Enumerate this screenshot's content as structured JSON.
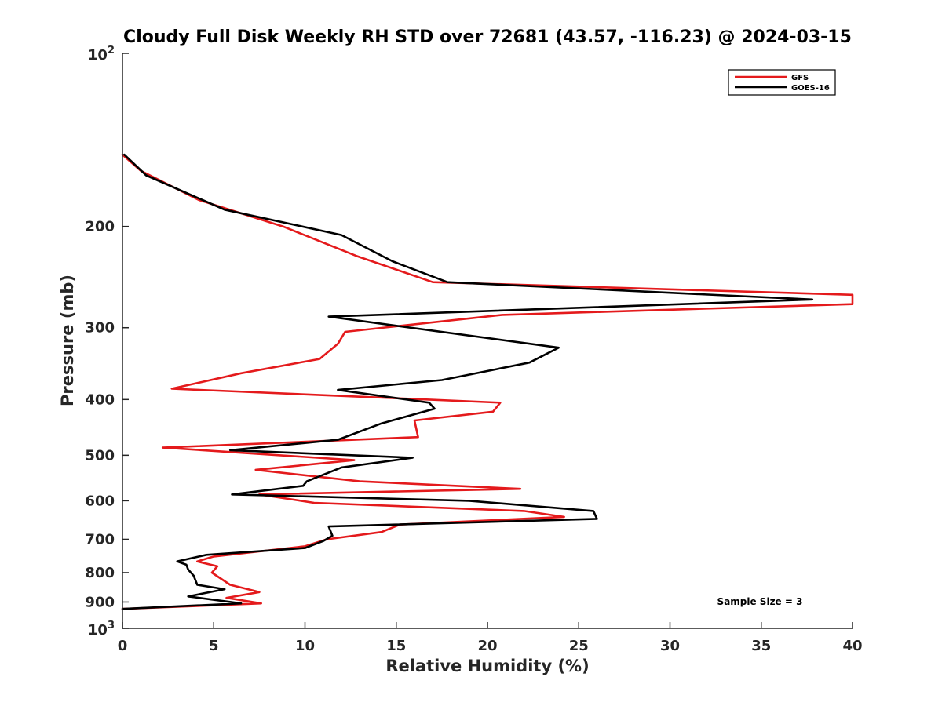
{
  "chart_data": {
    "type": "line",
    "title": "Cloudy Full Disk Weekly RH STD over 72681 (43.57, -116.23) @ 2024-03-15",
    "xlabel": "Relative Humidity (%)",
    "ylabel": "Pressure (mb)",
    "xlim": [
      0,
      40
    ],
    "ylim": [
      100,
      1000
    ],
    "y_scale": "log",
    "y_reversed": true,
    "grid": false,
    "legend_position": "top-right",
    "x_ticks": [
      "0",
      "5",
      "10",
      "15",
      "20",
      "25",
      "30",
      "35",
      "40"
    ],
    "y_ticks": [
      {
        "value": 200,
        "label": "200"
      },
      {
        "value": 300,
        "label": "300"
      },
      {
        "value": 400,
        "label": "400"
      },
      {
        "value": 500,
        "label": "500"
      },
      {
        "value": 600,
        "label": "600"
      },
      {
        "value": 700,
        "label": "700"
      },
      {
        "value": 800,
        "label": "800"
      },
      {
        "value": 900,
        "label": "900"
      }
    ],
    "y_limit_labels": {
      "top": {
        "base": "10",
        "exp": "2"
      },
      "bottom": {
        "base": "10",
        "exp": "3"
      }
    },
    "annotation": "Sample Size = 3",
    "series": [
      {
        "name": "GFS",
        "color": "#e41a1c",
        "points": [
          [
            0.0,
            150
          ],
          [
            1.0,
            160
          ],
          [
            4.2,
            180
          ],
          [
            8.8,
            200
          ],
          [
            12.8,
            225
          ],
          [
            17.0,
            250
          ],
          [
            40.0,
            263
          ],
          [
            40.0,
            273
          ],
          [
            20.8,
            285
          ],
          [
            12.2,
            305
          ],
          [
            11.8,
            320
          ],
          [
            10.8,
            340
          ],
          [
            6.5,
            360
          ],
          [
            2.7,
            383
          ],
          [
            20.7,
            405
          ],
          [
            20.3,
            420
          ],
          [
            16.0,
            435
          ],
          [
            16.2,
            465
          ],
          [
            2.2,
            485
          ],
          [
            12.7,
            510
          ],
          [
            7.3,
            530
          ],
          [
            13.0,
            555
          ],
          [
            21.8,
            572
          ],
          [
            7.5,
            585
          ],
          [
            10.5,
            605
          ],
          [
            22.0,
            625
          ],
          [
            24.2,
            640
          ],
          [
            15.2,
            660
          ],
          [
            14.2,
            680
          ],
          [
            11.2,
            700
          ],
          [
            10.0,
            720
          ],
          [
            5.0,
            750
          ],
          [
            4.1,
            765
          ],
          [
            5.2,
            780
          ],
          [
            4.9,
            800
          ],
          [
            5.9,
            840
          ],
          [
            7.5,
            865
          ],
          [
            5.7,
            885
          ],
          [
            7.6,
            905
          ],
          [
            0.0,
            925
          ]
        ]
      },
      {
        "name": "GOES-16",
        "color": "#000000",
        "points": [
          [
            0.1,
            150
          ],
          [
            1.3,
            163
          ],
          [
            5.6,
            187
          ],
          [
            12.0,
            207
          ],
          [
            14.8,
            230
          ],
          [
            17.8,
            250
          ],
          [
            37.8,
            268
          ],
          [
            11.3,
            287
          ],
          [
            23.9,
            325
          ],
          [
            22.3,
            345
          ],
          [
            17.5,
            370
          ],
          [
            11.8,
            385
          ],
          [
            16.8,
            405
          ],
          [
            17.1,
            415
          ],
          [
            14.2,
            440
          ],
          [
            11.8,
            470
          ],
          [
            5.9,
            490
          ],
          [
            15.9,
            505
          ],
          [
            12.0,
            525
          ],
          [
            10.1,
            555
          ],
          [
            9.9,
            565
          ],
          [
            6.0,
            585
          ],
          [
            19.0,
            600
          ],
          [
            25.8,
            625
          ],
          [
            26.0,
            645
          ],
          [
            11.3,
            665
          ],
          [
            11.5,
            690
          ],
          [
            11.0,
            705
          ],
          [
            10.0,
            725
          ],
          [
            4.6,
            745
          ],
          [
            3.0,
            765
          ],
          [
            3.5,
            775
          ],
          [
            3.6,
            790
          ],
          [
            3.9,
            810
          ],
          [
            4.1,
            840
          ],
          [
            5.6,
            855
          ],
          [
            3.6,
            880
          ],
          [
            6.5,
            905
          ],
          [
            0.0,
            925
          ]
        ]
      }
    ]
  }
}
